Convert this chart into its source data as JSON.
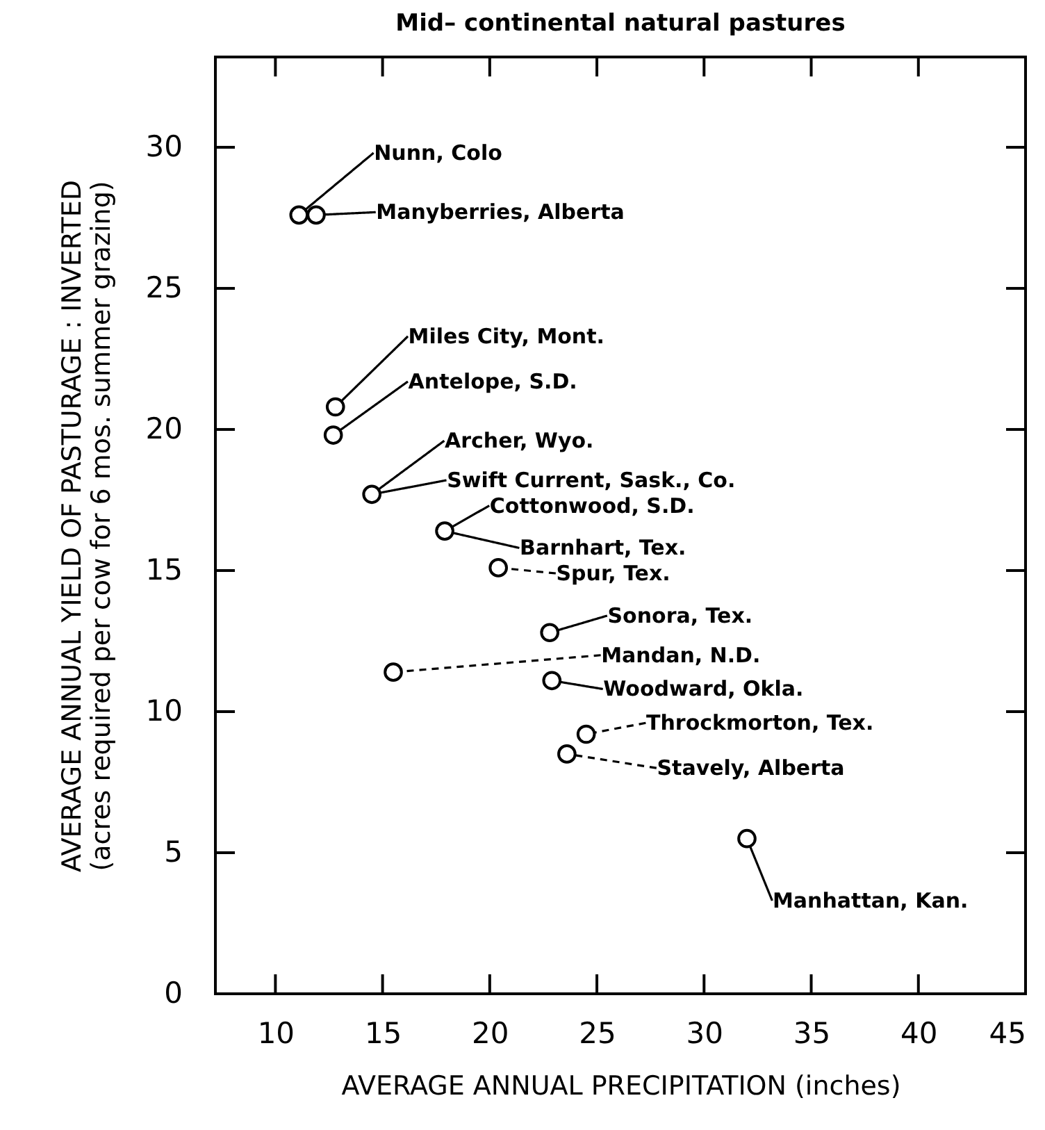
{
  "chart_data": {
    "type": "scatter",
    "title": "Mid– continental natural pastures",
    "xlabel": "AVERAGE ANNUAL PRECIPITATION (inches)",
    "ylabel": "AVERAGE ANNUAL YIELD OF PASTURAGE : INVERTED\n(acres required per cow for 6 mos. summer grazing)",
    "x": [
      11.1,
      11.9,
      12.8,
      12.7,
      14.5,
      17.9,
      20.4,
      22.8,
      15.5,
      22.9,
      24.5,
      23.6,
      32.0
    ],
    "series": [
      {
        "color": "#000000",
        "values": [
          27.6,
          27.6,
          20.8,
          19.8,
          17.7,
          16.4,
          15.1,
          12.8,
          11.4,
          11.1,
          9.2,
          8.5,
          5.5
        ]
      }
    ],
    "marker": "circle",
    "xlim": [
      7.2,
      45
    ],
    "xticks": [
      10,
      15,
      20,
      25,
      30,
      35,
      40,
      45
    ],
    "ylim": [
      0,
      33.2
    ],
    "yticks": [
      0,
      5,
      10,
      15,
      20,
      25,
      30
    ],
    "annotations": [
      {
        "text": "Nunn, Colo",
        "x": 11.1,
        "y": 27.6
      },
      {
        "text": "Manyberries, Alberta",
        "x": 11.9,
        "y": 27.6
      },
      {
        "text": "Miles City, Mont.",
        "x": 12.8,
        "y": 20.8
      },
      {
        "text": "Antelope, S.D.",
        "x": 12.7,
        "y": 19.8
      },
      {
        "text": "Archer, Wyo.",
        "x": 14.5,
        "y": 17.7
      },
      {
        "text": "Swift Current, Sask., Co.",
        "x": 14.5,
        "y": 17.7
      },
      {
        "text": "Cottonwood, S.D.",
        "x": 17.9,
        "y": 16.4
      },
      {
        "text": "Barnhart, Tex.",
        "x": 17.9,
        "y": 16.4
      },
      {
        "text": "Spur, Tex.",
        "x": 20.4,
        "y": 15.1
      },
      {
        "text": "Sonora, Tex.",
        "x": 22.8,
        "y": 12.8
      },
      {
        "text": "Mandan, N.D.",
        "x": 15.5,
        "y": 11.4
      },
      {
        "text": "Woodward, Okla.",
        "x": 22.9,
        "y": 11.1
      },
      {
        "text": "Throckmorton, Tex.",
        "x": 24.5,
        "y": 9.2
      },
      {
        "text": "Stavely, Alberta",
        "x": 23.6,
        "y": 8.5
      },
      {
        "text": "Manhattan, Kan.",
        "x": 32.0,
        "y": 5.5
      }
    ]
  }
}
